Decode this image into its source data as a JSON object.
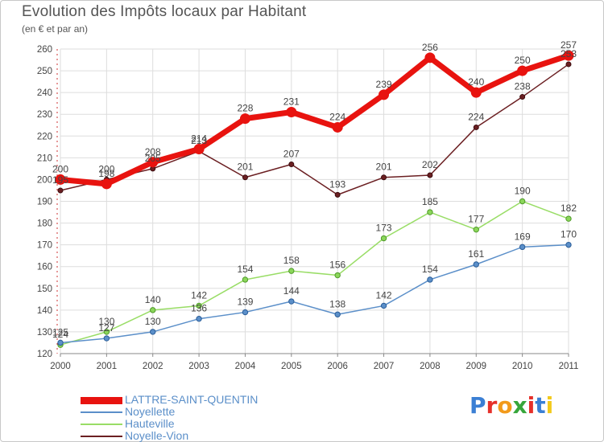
{
  "title": "Evolution des Impôts locaux par Habitant",
  "subtitle": "(en € et par an)",
  "logo_text": "Proxiti",
  "chart_data": {
    "type": "line",
    "title": "Evolution des Impôts locaux par Habitant",
    "subtitle": "(en € et par an)",
    "x": [
      "2000",
      "2001",
      "2002",
      "2003",
      "2004",
      "2005",
      "2006",
      "2007",
      "2008",
      "2009",
      "2010",
      "2011"
    ],
    "ylim": [
      120,
      260
    ],
    "yticks": [
      120,
      130,
      140,
      150,
      160,
      170,
      180,
      190,
      200,
      210,
      220,
      230,
      240,
      250,
      260
    ],
    "grid": true,
    "legend_position": "bottom-left",
    "series": [
      {
        "name": "LATTRE-SAINT-QUENTIN",
        "color": "#e8130f",
        "values": [
          200,
          198,
          208,
          214,
          228,
          231,
          224,
          239,
          256,
          240,
          250,
          257
        ]
      },
      {
        "name": "Noyellette",
        "color": "#5b8fc9",
        "values": [
          125,
          127,
          130,
          136,
          139,
          144,
          138,
          142,
          154,
          161,
          169,
          170
        ]
      },
      {
        "name": "Hauteville",
        "color": "#99dd66",
        "values": [
          124,
          130,
          140,
          142,
          154,
          158,
          156,
          173,
          185,
          177,
          190,
          182
        ]
      },
      {
        "name": "Noyelle-Vion",
        "color": "#6b1f22",
        "values": [
          195,
          200,
          205,
          213,
          201,
          207,
          193,
          201,
          202,
          224,
          238,
          253
        ]
      }
    ]
  }
}
